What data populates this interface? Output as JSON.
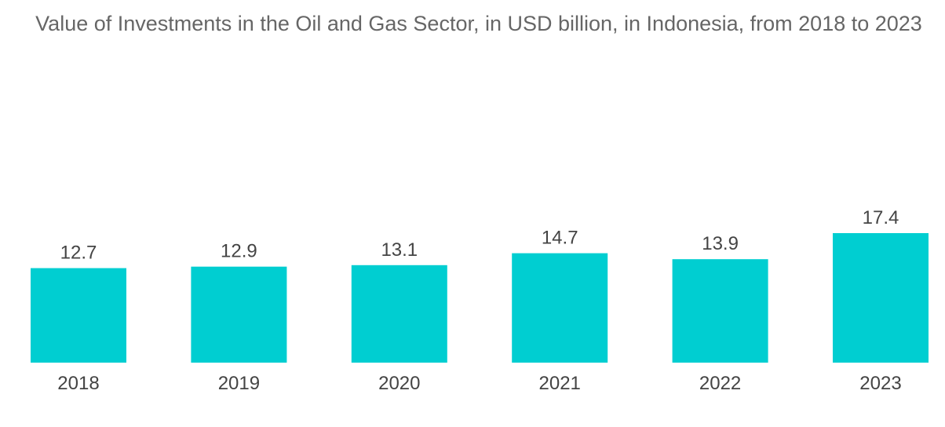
{
  "chart_data": {
    "type": "bar",
    "title": "Value of Investments in the Oil and Gas Sector, in USD billion, in Indonesia, from 2018 to 2023",
    "categories": [
      "2018",
      "2019",
      "2020",
      "2021",
      "2022",
      "2023"
    ],
    "values": [
      12.7,
      12.9,
      13.1,
      14.7,
      13.9,
      17.4
    ],
    "value_labels": [
      "12.7",
      "12.9",
      "13.1",
      "14.7",
      "13.9",
      "17.4"
    ],
    "xlabel": "",
    "ylabel": "",
    "ylim": [
      0,
      21
    ],
    "grid": false,
    "legend": "none",
    "bar_color": "#00CED1"
  }
}
